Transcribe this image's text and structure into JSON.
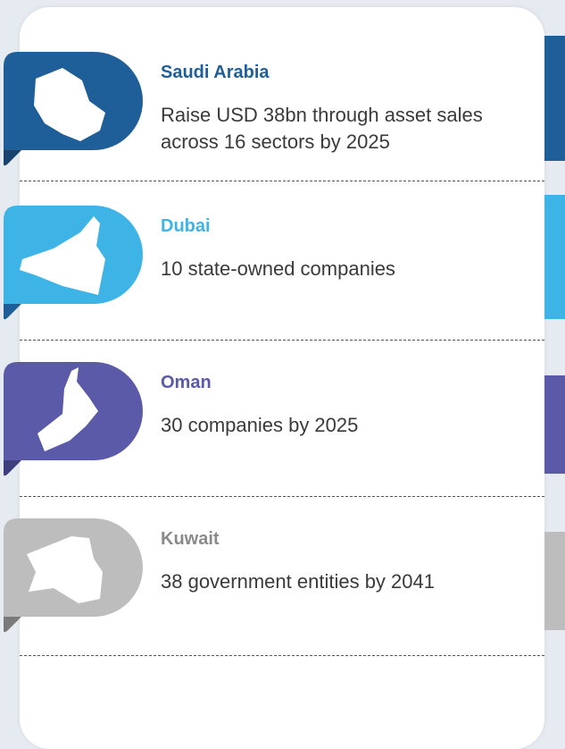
{
  "sections": [
    {
      "title": "Saudi Arabia",
      "lines": [
        "Raise USD 38bn through asset sales",
        "across 16 sectors by 2025"
      ]
    },
    {
      "title": "Dubai",
      "lines": [
        "10 state-owned companies"
      ]
    },
    {
      "title": "Oman",
      "lines": [
        "30 companies by 2025"
      ]
    },
    {
      "title": "Kuwait",
      "lines": [
        "38 government entities by 2041"
      ]
    }
  ]
}
